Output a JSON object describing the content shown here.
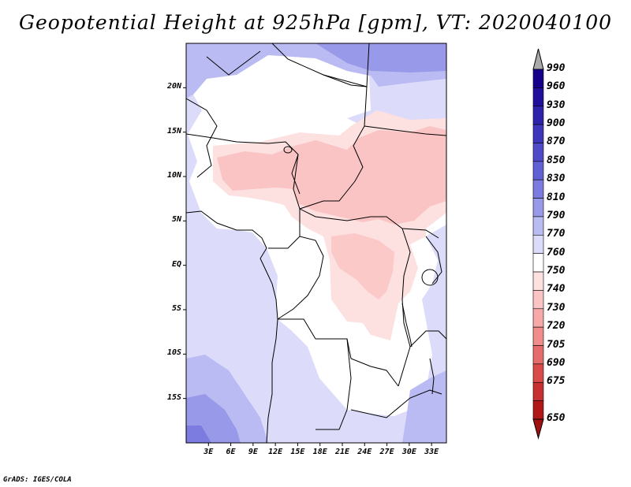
{
  "title": "Geopotential Height at 925hPa [gpm], VT: 2020040100",
  "credit": "GrADS: IGES/COLA",
  "map": {
    "region": "Central Africa",
    "variable": "Geopotential Height",
    "level": "925hPa",
    "units": "gpm",
    "valid_time": "2020040100",
    "lon_range": [
      0,
      35
    ],
    "lat_range": [
      -20,
      25
    ]
  },
  "lat_labels": [
    {
      "text": "20N",
      "lat": 20
    },
    {
      "text": "15N",
      "lat": 15
    },
    {
      "text": "10N",
      "lat": 10
    },
    {
      "text": "5N",
      "lat": 5
    },
    {
      "text": "EQ",
      "lat": 0
    },
    {
      "text": "5S",
      "lat": -5
    },
    {
      "text": "10S",
      "lat": -10
    },
    {
      "text": "15S",
      "lat": -15
    }
  ],
  "lon_labels": [
    {
      "text": "3E",
      "lon": 3
    },
    {
      "text": "6E",
      "lon": 6
    },
    {
      "text": "9E",
      "lon": 9
    },
    {
      "text": "12E",
      "lon": 12
    },
    {
      "text": "15E",
      "lon": 15
    },
    {
      "text": "18E",
      "lon": 18
    },
    {
      "text": "21E",
      "lon": 21
    },
    {
      "text": "24E",
      "lon": 24
    },
    {
      "text": "27E",
      "lon": 27
    },
    {
      "text": "30E",
      "lon": 30
    },
    {
      "text": "33E",
      "lon": 33
    }
  ],
  "colorbar": {
    "levels": [
      {
        "label": "990",
        "color": "#15008a"
      },
      {
        "label": "960",
        "color": "#1f0f9a"
      },
      {
        "label": "930",
        "color": "#2e22ab"
      },
      {
        "label": "900",
        "color": "#3d36bb"
      },
      {
        "label": "870",
        "color": "#4f4ac8"
      },
      {
        "label": "850",
        "color": "#6161d6"
      },
      {
        "label": "830",
        "color": "#7b7be0"
      },
      {
        "label": "810",
        "color": "#9999ea"
      },
      {
        "label": "790",
        "color": "#bbbbf3"
      },
      {
        "label": "770",
        "color": "#dcdcfa"
      },
      {
        "label": "760",
        "color": "#ffffff"
      },
      {
        "label": "750",
        "color": "#fde0e0"
      },
      {
        "label": "740",
        "color": "#fbc4c4"
      },
      {
        "label": "730",
        "color": "#f7a8a8"
      },
      {
        "label": "720",
        "color": "#f08c8c"
      },
      {
        "label": "705",
        "color": "#e66c6c"
      },
      {
        "label": "690",
        "color": "#d94a4a"
      },
      {
        "label": "675",
        "color": "#c73030"
      },
      {
        "label": "650",
        "color": "#b01818"
      }
    ],
    "over_color": "#aaaaaa",
    "under_color": "#a01010"
  },
  "colors": {
    "frame": "#000000",
    "high_770_790": "#dcdcfa",
    "high_790_810": "#bbbbf3",
    "high_810_830": "#9999ea",
    "low_750_760": "#fde0e0",
    "low_740_750": "#fbc4c4"
  }
}
